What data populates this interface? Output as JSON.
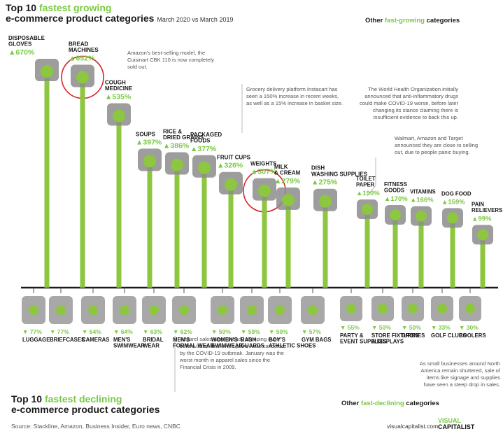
{
  "header": {
    "title_line1_a": "Top 10 ",
    "title_line1_b": "fastest growing",
    "title_line2": "e-commerce product categories",
    "date_range": "March 2020 vs March 2019",
    "other_growing_a": "Other ",
    "other_growing_b": "fast-growing",
    "other_growing_c": " categories"
  },
  "footer": {
    "title_line1_a": "Top 10 ",
    "title_line1_b": "fastest declining",
    "title_line2": "e-commerce product categories",
    "other_declining_a": "Other ",
    "other_declining_b": "fast-declining",
    "other_declining_c": " categories",
    "source": "Source: Stackline, Amazon, Business Insider, Euro news, CNBC",
    "brand_url": "visualcapitalist.com",
    "logo_line1": "VISUAL",
    "logo_line2": "CAPITALIST"
  },
  "notes": {
    "bread": "Amazon's best-selling model, the Cuisinart CBK 110 is now completely sold out.",
    "instacart": "Grocery delivery platform Instacart has seen a 150% increase in recent weeks, as well as a 15% increase in basket size.",
    "who": "The World Health Organization initially announced that anti-inflammatory drugs could make COVID-19 worse, before later changing its stance claiming there is insufficient evidence to back this up.",
    "walmart": "Walmart, Amazon and Target announced they are close to selling out, due to people panic buying.",
    "apparel": "Apparel sales were already slumping even before travel and event plans were canceled by the COVID-19 outbreak. January was the worst month in apparel sales since the Financial Crisis in 2009.",
    "small_biz": "As small businesses around North America remain shuttered, sale of items like signage and supplies have seen a steep drop in sales."
  },
  "colors": {
    "accent_green": "#7ac943",
    "stem_green": "#8dc63f",
    "highlight_red": "#d7262e",
    "axis": "#1a1a1a"
  },
  "chart_data": [
    {
      "type": "bar",
      "title": "Top 10 fastest growing e-commerce product categories",
      "subtitle": "March 2020 vs March 2019",
      "unit": "%",
      "direction": "increase",
      "categories": [
        "DISPOSABLE GLOVES",
        "BREAD MACHINES",
        "COUGH MEDICINE",
        "SOUPS",
        "RICE & DRIED GRAINS",
        "PACKAGED FOODS",
        "FRUIT CUPS",
        "WEIGHTS",
        "MILK & CREAM",
        "DISH WASHING SUPPLIES"
      ],
      "labels": [
        "670%",
        "652%",
        "535%",
        "397%",
        "386%",
        "377%",
        "326%",
        "307%",
        "279%",
        "275%"
      ],
      "values": [
        670,
        652,
        535,
        397,
        386,
        377,
        326,
        307,
        279,
        275
      ],
      "highlighted": [
        "BREAD MACHINES",
        "WEIGHTS"
      ],
      "icons": [
        "glove-icon",
        "bread-machine-icon",
        "medicine-box-icon",
        "soup-can-icon",
        "rice-bag-icon",
        "packaged-food-icon",
        "fruit-cup-icon",
        "weight-icon",
        "milk-carton-icon",
        "dish-soap-icon"
      ]
    },
    {
      "type": "bar",
      "title": "Other fast-growing categories",
      "unit": "%",
      "direction": "increase",
      "categories": [
        "TOILET PAPER",
        "FITNESS GOODS",
        "VITAMINS",
        "DOG FOOD",
        "PAIN RELIEVERS"
      ],
      "labels": [
        "190%",
        "170%",
        "166%",
        "159%",
        "99%"
      ],
      "values": [
        190,
        170,
        166,
        159,
        99
      ],
      "icons": [
        "toilet-paper-icon",
        "fitness-goods-icon",
        "vitamins-icon",
        "dog-food-icon",
        "pain-reliever-icon"
      ]
    },
    {
      "type": "bar",
      "title": "Top 10 fastest declining e-commerce product categories",
      "unit": "%",
      "direction": "decrease",
      "categories": [
        "LUGGAGE",
        "BRIEFCASES",
        "CAMERAS",
        "MEN'S SWIMWEAR",
        "BRIDAL WEAR",
        "MEN'S FORMAL WEAR",
        "WOMEN'S SWIMWEAR",
        "RASH GUARDS",
        "BOY'S ATHLETIC SHOES",
        "GYM BAGS"
      ],
      "labels": [
        "77%",
        "77%",
        "64%",
        "64%",
        "63%",
        "62%",
        "59%",
        "59%",
        "59%",
        "57%"
      ],
      "values": [
        -77,
        -77,
        -64,
        -64,
        -63,
        -62,
        -59,
        -59,
        -59,
        -57
      ],
      "icons": [
        "luggage-icon",
        "briefcase-icon",
        "camera-icon",
        "swimwear-icon",
        "bridal-dress-icon",
        "bow-tie-icon",
        "swimsuit-icon",
        "rash-guard-icon",
        "shoe-icon",
        "gym-bag-icon"
      ]
    },
    {
      "type": "bar",
      "title": "Other fast-declining categories",
      "unit": "%",
      "direction": "decrease",
      "categories": [
        "PARTY & EVENT SUPPLIES",
        "STORE FIXTURES & DISPLAYS",
        "DRONES",
        "GOLF CLUBS",
        "COOLERS"
      ],
      "labels": [
        "55%",
        "50%",
        "50%",
        "33%",
        "30%"
      ],
      "values": [
        -55,
        -50,
        -50,
        -33,
        -30
      ],
      "icons": [
        "party-icon",
        "open-sign-icon",
        "drone-icon",
        "golf-clubs-icon",
        "cooler-icon"
      ]
    }
  ]
}
